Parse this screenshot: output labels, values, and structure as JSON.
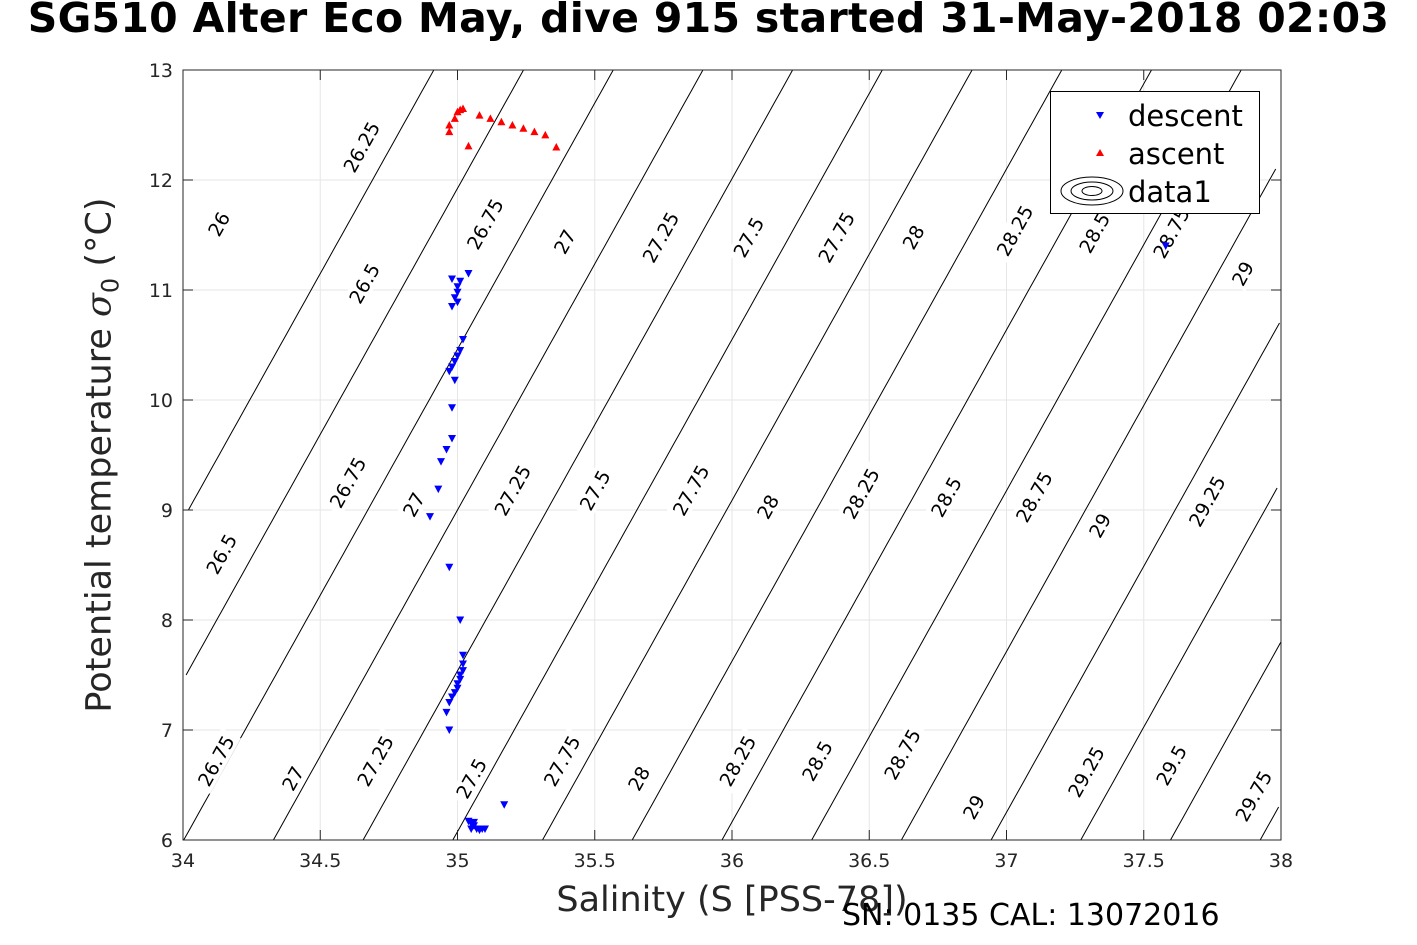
{
  "chart_data": {
    "type": "scatter",
    "title": "SG510 Alter Eco May, dive 915 started 31-May-2018 02:03",
    "xlabel": "Salinity (S [PSS-78])",
    "ylabel_prefix": "Potential temperature ",
    "ylabel_symbol": "σ",
    "ylabel_subscript": "0",
    "ylabel_suffix": " (°C)",
    "footer": "SN: 0135  CAL: 13072016",
    "xlim": [
      34,
      38
    ],
    "ylim": [
      6,
      13
    ],
    "xticks": [
      34,
      34.5,
      35,
      35.5,
      36,
      36.5,
      37,
      37.5,
      38
    ],
    "xtick_labels": [
      "34",
      "34.5",
      "35",
      "35.5",
      "36",
      "36.5",
      "37",
      "37.5",
      "38"
    ],
    "yticks": [
      6,
      7,
      8,
      9,
      10,
      11,
      12,
      13
    ],
    "ytick_labels": [
      "6",
      "7",
      "8",
      "9",
      "10",
      "11",
      "12",
      "13"
    ],
    "grid": true,
    "legend_position": "top-right",
    "legend": [
      "descent",
      "ascent",
      "data1"
    ],
    "contour_levels": [
      26,
      26.25,
      26.5,
      26.75,
      27,
      27.25,
      27.5,
      27.75,
      28,
      28.25,
      28.5,
      28.75,
      29,
      29.25,
      29.5,
      29.75
    ],
    "contour_labels": [
      {
        "text": "26.75",
        "s": 34.12,
        "t": 6.72
      },
      {
        "text": "27",
        "s": 34.4,
        "t": 6.56
      },
      {
        "text": "27.25",
        "s": 34.7,
        "t": 6.72
      },
      {
        "text": "27.5",
        "s": 35.05,
        "t": 6.56
      },
      {
        "text": "27.75",
        "s": 35.38,
        "t": 6.72
      },
      {
        "text": "28",
        "s": 35.66,
        "t": 6.56
      },
      {
        "text": "28.25",
        "s": 36.02,
        "t": 6.72
      },
      {
        "text": "28.5",
        "s": 36.31,
        "t": 6.72
      },
      {
        "text": "28.75",
        "s": 36.62,
        "t": 6.78
      },
      {
        "text": "29",
        "s": 36.88,
        "t": 6.3
      },
      {
        "text": "29.25",
        "s": 37.29,
        "t": 6.62
      },
      {
        "text": "29.5",
        "s": 37.6,
        "t": 6.68
      },
      {
        "text": "29.75",
        "s": 37.9,
        "t": 6.4
      },
      {
        "text": "26.5",
        "s": 34.14,
        "t": 8.6
      },
      {
        "text": "26.75",
        "s": 34.6,
        "t": 9.25
      },
      {
        "text": "27",
        "s": 34.84,
        "t": 9.05
      },
      {
        "text": "27.25",
        "s": 35.2,
        "t": 9.18
      },
      {
        "text": "27.5",
        "s": 35.5,
        "t": 9.18
      },
      {
        "text": "27.75",
        "s": 35.85,
        "t": 9.18
      },
      {
        "text": "28",
        "s": 36.13,
        "t": 9.03
      },
      {
        "text": "28.25",
        "s": 36.47,
        "t": 9.15
      },
      {
        "text": "28.5",
        "s": 36.78,
        "t": 9.12
      },
      {
        "text": "28.75",
        "s": 37.1,
        "t": 9.12
      },
      {
        "text": "29",
        "s": 37.34,
        "t": 8.86
      },
      {
        "text": "29.25",
        "s": 37.73,
        "t": 9.08
      },
      {
        "text": "26",
        "s": 34.13,
        "t": 11.6
      },
      {
        "text": "26.5",
        "s": 34.66,
        "t": 11.06
      },
      {
        "text": "26.75",
        "s": 35.1,
        "t": 11.6
      },
      {
        "text": "27",
        "s": 35.39,
        "t": 11.44
      },
      {
        "text": "27.25",
        "s": 35.74,
        "t": 11.48
      },
      {
        "text": "27.5",
        "s": 36.06,
        "t": 11.48
      },
      {
        "text": "27.75",
        "s": 36.38,
        "t": 11.48
      },
      {
        "text": "28",
        "s": 36.66,
        "t": 11.48
      },
      {
        "text": "28.25",
        "s": 37.03,
        "t": 11.54
      },
      {
        "text": "28.5",
        "s": 37.32,
        "t": 11.52
      },
      {
        "text": "28.75",
        "s": 37.6,
        "t": 11.52
      },
      {
        "text": "29",
        "s": 37.86,
        "t": 11.15
      },
      {
        "text": "26.25",
        "s": 34.65,
        "t": 12.3
      }
    ],
    "series": [
      {
        "name": "descent",
        "marker": "triangle-down",
        "color": "#0000ff",
        "points": [
          [
            34.98,
            11.1
          ],
          [
            35.01,
            11.08
          ],
          [
            35.04,
            11.15
          ],
          [
            35.0,
            11.03
          ],
          [
            35.0,
            10.98
          ],
          [
            34.99,
            10.93
          ],
          [
            35.0,
            10.89
          ],
          [
            34.98,
            10.85
          ],
          [
            35.02,
            10.55
          ],
          [
            35.01,
            10.45
          ],
          [
            35.0,
            10.4
          ],
          [
            34.99,
            10.35
          ],
          [
            34.98,
            10.3
          ],
          [
            34.97,
            10.26
          ],
          [
            34.99,
            10.18
          ],
          [
            34.98,
            9.93
          ],
          [
            34.98,
            9.65
          ],
          [
            34.96,
            9.55
          ],
          [
            34.94,
            9.44
          ],
          [
            34.93,
            9.19
          ],
          [
            34.9,
            8.94
          ],
          [
            34.97,
            8.48
          ],
          [
            35.01,
            8.0
          ],
          [
            35.02,
            7.68
          ],
          [
            35.02,
            7.6
          ],
          [
            35.02,
            7.54
          ],
          [
            35.01,
            7.5
          ],
          [
            35.01,
            7.46
          ],
          [
            35.0,
            7.42
          ],
          [
            35.0,
            7.38
          ],
          [
            34.99,
            7.34
          ],
          [
            34.98,
            7.3
          ],
          [
            34.97,
            7.25
          ],
          [
            34.96,
            7.16
          ],
          [
            34.97,
            7.0
          ],
          [
            35.04,
            6.17
          ],
          [
            35.05,
            6.15
          ],
          [
            35.06,
            6.13
          ],
          [
            35.05,
            6.1
          ],
          [
            35.07,
            6.1
          ],
          [
            35.08,
            6.09
          ],
          [
            35.09,
            6.1
          ],
          [
            35.1,
            6.1
          ],
          [
            35.06,
            6.16
          ],
          [
            35.17,
            6.32
          ],
          [
            37.58,
            11.4
          ]
        ]
      },
      {
        "name": "ascent",
        "marker": "triangle-up",
        "color": "#ff0000",
        "points": [
          [
            34.97,
            12.44
          ],
          [
            34.97,
            12.5
          ],
          [
            34.99,
            12.56
          ],
          [
            35.0,
            12.62
          ],
          [
            35.01,
            12.64
          ],
          [
            35.02,
            12.65
          ],
          [
            35.04,
            12.31
          ],
          [
            35.08,
            12.59
          ],
          [
            35.12,
            12.56
          ],
          [
            35.16,
            12.53
          ],
          [
            35.2,
            12.5
          ],
          [
            35.24,
            12.47
          ],
          [
            35.28,
            12.44
          ],
          [
            35.32,
            12.41
          ],
          [
            35.36,
            12.3
          ]
        ]
      }
    ]
  }
}
